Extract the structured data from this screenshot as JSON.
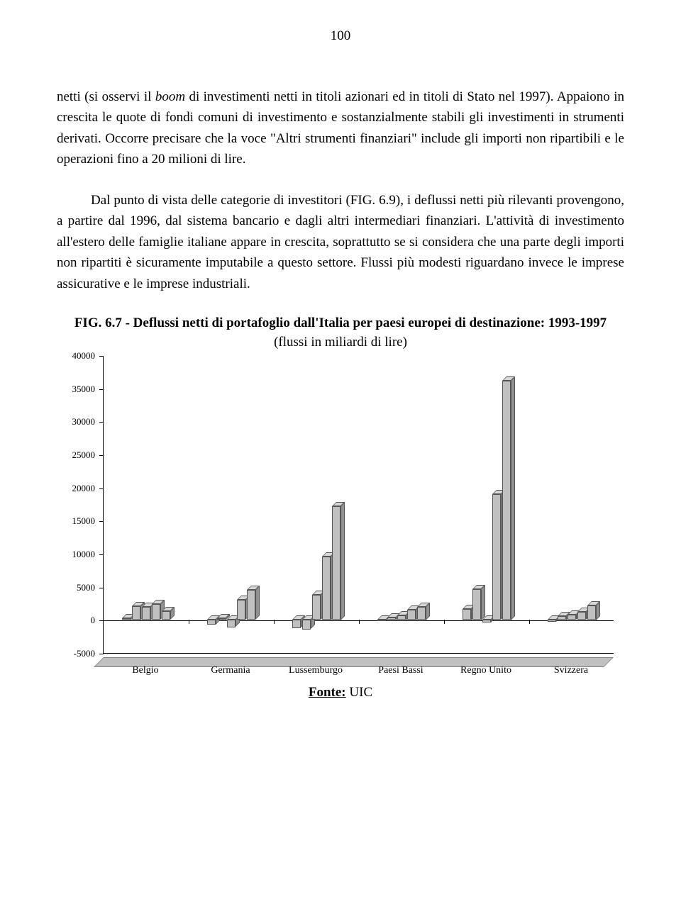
{
  "page_number": "100",
  "paragraph1_part1": "netti (si osservi il ",
  "paragraph1_italic": "boom",
  "paragraph1_part2": " di investimenti netti in titoli azionari ed in titoli di Stato nel 1997). Appaiono in crescita le quote di fondi comuni di investimento e sostanzialmente stabili gli investimenti in strumenti derivati. Occorre precisare che la voce \"Altri strumenti finanziari\" include gli importi non ripartibili e le operazioni fino a 20 milioni di lire.",
  "paragraph2": "Dal punto di vista delle categorie di investitori (FIG. 6.9), i deflussi netti più rilevanti provengono, a partire dal 1996, dal sistema bancario e dagli altri intermediari finanziari. L'attività di investimento all'estero delle famiglie italiane appare in crescita, soprattutto se si considera che una parte degli importi non ripartiti è sicuramente imputabile a questo settore. Flussi più modesti riguardano invece le imprese assicurative e le imprese industriali.",
  "figure": {
    "title_bold": "FIG. 6.7 - Deflussi netti di portafoglio dall'Italia per paesi europei di destinazione: 1993-1997 ",
    "title_plain": "(flussi in miliardi di lire)",
    "type": "bar-3d-grouped",
    "ylim": [
      -5000,
      40000
    ],
    "ytick_step": 5000,
    "yticks": [
      -5000,
      0,
      5000,
      10000,
      15000,
      20000,
      25000,
      30000,
      35000,
      40000
    ],
    "categories": [
      "Belgio",
      "Germania",
      "Lussemburgo",
      "Paesi Bassi",
      "Regno Unito",
      "Svizzera"
    ],
    "series_count": 5,
    "data": {
      "Belgio": [
        300,
        2100,
        2000,
        2400,
        1300
      ],
      "Germania": [
        -700,
        300,
        -1100,
        3000,
        4500
      ],
      "Lussemburgo": [
        -1200,
        -1400,
        3800,
        9600,
        17200
      ],
      "Paesi Bassi": [
        -100,
        400,
        700,
        1600,
        2000
      ],
      "Regno Unito": [
        1700,
        4700,
        -400,
        19000,
        36200
      ],
      "Svizzera": [
        -300,
        600,
        800,
        1200,
        2200
      ]
    },
    "bar_fill": "#c0c0c0",
    "bar_side": "#909090",
    "bar_top": "#d8d8d8",
    "bar_border": "#555555",
    "background": "#ffffff",
    "label_fontsize": 13
  },
  "source_label": "Fonte:",
  "source_value": " UIC"
}
